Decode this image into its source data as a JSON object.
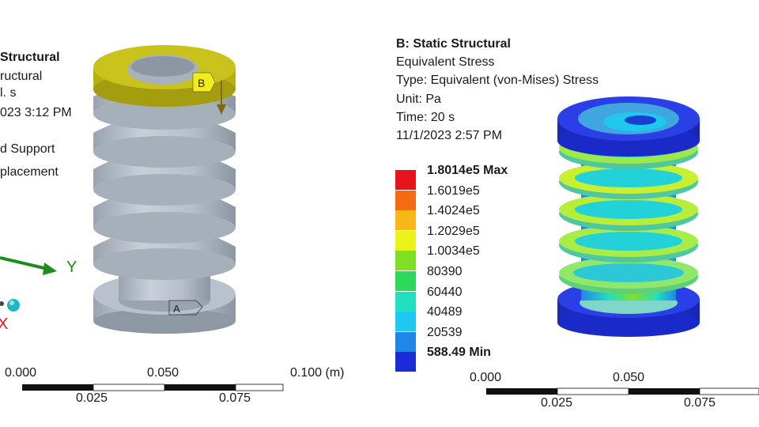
{
  "left_panel": {
    "title": "Structural",
    "title_prefix": "",
    "line1": "ructural",
    "line2": "l. s",
    "line3": "023 3:12 PM",
    "item1": "d Support",
    "item2": "placement",
    "axis_y": "Y",
    "axis_x": "X",
    "marker_a": "A",
    "marker_b": "B",
    "scale": {
      "l0": "0.000",
      "l1": "0.050",
      "l2": "0.100 (m)",
      "m0": "0.025",
      "m1": "0.075"
    }
  },
  "right_panel": {
    "title": "B: Static Structural",
    "subtitle": "Equivalent Stress",
    "type": "Type: Equivalent (von-Mises) Stress",
    "unit": "Unit: Pa",
    "time": "Time: 20 s",
    "date": "11/1/2023 2:57 PM",
    "legend": [
      {
        "label": "1.8014e5 Max",
        "color": "#e8141c",
        "bold": true
      },
      {
        "label": "1.6019e5",
        "color": "#f36b12",
        "bold": false
      },
      {
        "label": "1.4024e5",
        "color": "#f7b716",
        "bold": false
      },
      {
        "label": "1.2029e5",
        "color": "#ecf218",
        "bold": false
      },
      {
        "label": "1.0034e5",
        "color": "#7ee022",
        "bold": false
      },
      {
        "label": "80390",
        "color": "#2bd85a",
        "bold": false
      },
      {
        "label": "60440",
        "color": "#22e0bf",
        "bold": false
      },
      {
        "label": "40489",
        "color": "#1fc8ef",
        "bold": false
      },
      {
        "label": "20539",
        "color": "#1f86e8",
        "bold": false
      },
      {
        "label": "588.49 Min",
        "color": "#1b2bd6",
        "bold": true
      }
    ],
    "scale": {
      "l0": "0.000",
      "l1": "0.050",
      "m0": "0.025",
      "m1": "0.075"
    }
  },
  "colors": {
    "model_gray": "#c4ccd6",
    "model_dark": "#97a1ad",
    "top_ring": "#c9c21d",
    "axis_green": "#1e8c1e",
    "axis_red": "#d62020",
    "ball_cyan": "#1fb7c4"
  }
}
